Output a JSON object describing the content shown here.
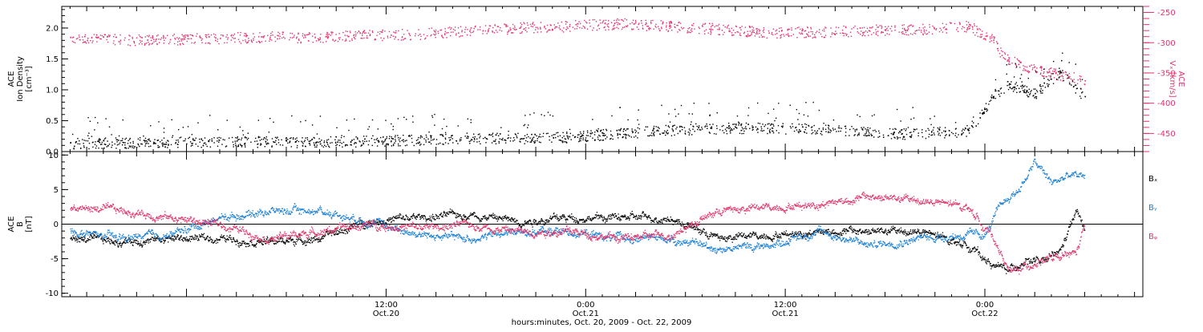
{
  "figure": {
    "footer_label": "hours:minutes, Oct. 20, 2009 - Oct. 22, 2009"
  },
  "colors": {
    "black": "#000000",
    "red": "#e0356a",
    "blue": "#1a7fd4"
  },
  "chart_data": [
    {
      "type": "scatter",
      "panel": "top",
      "xlabel": "hours:minutes, Oct. 20, 2009 - Oct. 22, 2009",
      "x_unit": "hours since Oct.20 00:00",
      "xlim": [
        -7.5,
        57.5
      ],
      "x_ticks": [
        {
          "x": 12,
          "label": "12:00",
          "sub": "Oct.20"
        },
        {
          "x": 24,
          "label": "0:00",
          "sub": "Oct.21"
        },
        {
          "x": 36,
          "label": "12:00",
          "sub": "Oct.21"
        },
        {
          "x": 48,
          "label": "0:00",
          "sub": "Oct.22"
        }
      ],
      "left_axis": {
        "label_lines": [
          "ACE",
          "Ion Density",
          "[cm⁻³]"
        ],
        "ylim": [
          0.0,
          2.35
        ],
        "ticks": [
          0.0,
          0.5,
          1.0,
          1.5,
          2.0
        ],
        "tick_labels": [
          "0.0",
          "0.5",
          "1.0",
          "1.5",
          "2.0"
        ],
        "color": "#000000"
      },
      "right_axis": {
        "label_lines": [
          "ACE",
          "Vₓ [km/s]"
        ],
        "ylim": [
          -480,
          -240
        ],
        "ticks": [
          -450,
          -400,
          -350,
          -300,
          -250
        ],
        "tick_labels": [
          "-450",
          "-400",
          "-350",
          "-300",
          "-250"
        ],
        "color": "#e0356a"
      },
      "series": [
        {
          "axis": "right",
          "color": "#e0356a",
          "x": [
            -7,
            -4,
            -1,
            2,
            5,
            8,
            11,
            14,
            17,
            20,
            23,
            26,
            29,
            32,
            35,
            38,
            41,
            44,
            47,
            48.5,
            49,
            50,
            51,
            52,
            53,
            54
          ],
          "y": [
            -290,
            -295,
            -294,
            -292,
            -290,
            -291,
            -287,
            -285,
            -280,
            -275,
            -272,
            -268,
            -272,
            -277,
            -283,
            -282,
            -279,
            -278,
            -272,
            -295,
            -320,
            -335,
            -345,
            -350,
            -355,
            -362
          ]
        },
        {
          "axis": "left",
          "color": "#000000",
          "x": [
            -7,
            -2,
            3,
            8,
            13,
            18,
            23,
            28,
            33,
            38,
            43,
            47,
            48.5,
            49.5,
            51,
            52.5,
            54
          ],
          "y": [
            0.15,
            0.16,
            0.18,
            0.17,
            0.2,
            0.22,
            0.25,
            0.35,
            0.4,
            0.38,
            0.3,
            0.35,
            0.9,
            1.1,
            0.95,
            1.3,
            0.9
          ]
        }
      ]
    },
    {
      "type": "line",
      "panel": "bottom",
      "xlim": [
        -7.5,
        57.5
      ],
      "left_axis": {
        "label_lines": [
          "ACE",
          "B",
          "[nT]"
        ],
        "ylim": [
          -10.5,
          10.5
        ],
        "ticks": [
          -10,
          -5,
          0,
          5,
          10
        ],
        "tick_labels": [
          "-10",
          "-5",
          "0",
          "5",
          "10"
        ],
        "color": "#000000"
      },
      "zero_line": true,
      "series": [
        {
          "name": "Bₓ",
          "color": "#000000",
          "x": [
            -7,
            -4,
            -1,
            2,
            5,
            8,
            11,
            14,
            17,
            20,
            23,
            26,
            29,
            32,
            35,
            38,
            41,
            44,
            47,
            48.5,
            49.5,
            50.5,
            51.5,
            52.5,
            53.5,
            54
          ],
          "y": [
            -2,
            -2.5,
            -2,
            -2,
            -2.5,
            -2,
            0.5,
            1,
            1.5,
            0.5,
            1,
            1,
            1,
            -2,
            -1.5,
            -1,
            -1,
            -1,
            -3,
            -6,
            -6.5,
            -5,
            -5.5,
            -4,
            2,
            -1
          ]
        },
        {
          "name": "Bᵧ",
          "color": "#1a7fd4",
          "x": [
            -7,
            -4,
            -1,
            2,
            5,
            8,
            11,
            14,
            17,
            20,
            23,
            26,
            29,
            32,
            35,
            38,
            41,
            44,
            47,
            48,
            49,
            50,
            51,
            52,
            53,
            54
          ],
          "y": [
            -1,
            -2,
            -1.5,
            1,
            2,
            2,
            0.5,
            -1.5,
            -2,
            -1,
            -1,
            -2,
            -2,
            -3.5,
            -3,
            -1,
            -3,
            -2,
            -1.5,
            -1.5,
            3,
            5,
            9,
            6,
            7,
            7
          ]
        },
        {
          "name": "Bᵩ",
          "color": "#e0356a",
          "x": [
            -7,
            -4,
            -1,
            2,
            5,
            8,
            11,
            14,
            17,
            20,
            23,
            26,
            29,
            32,
            35,
            38,
            41,
            44,
            47,
            48.5,
            49.5,
            50.5,
            51.5,
            52.5,
            53.5,
            54
          ],
          "y": [
            2.5,
            2,
            1,
            0,
            -2,
            -1,
            0,
            -0.5,
            0,
            -1,
            -1,
            -2,
            -1.5,
            2,
            2.5,
            3,
            4,
            3.5,
            2.5,
            -2,
            -7,
            -6,
            -5,
            -5,
            -4,
            0
          ]
        }
      ]
    }
  ]
}
